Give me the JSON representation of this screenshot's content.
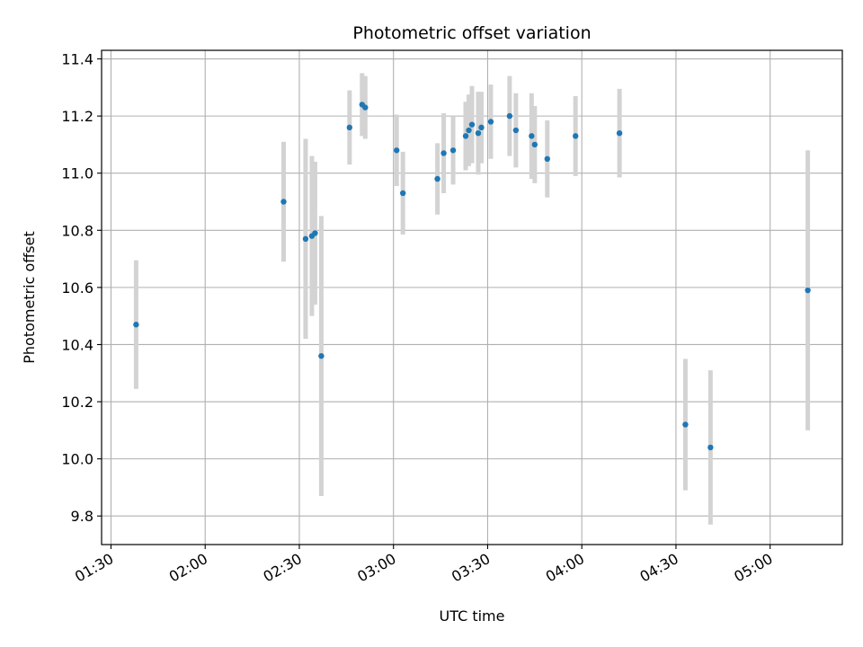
{
  "chart_data": {
    "type": "scatter",
    "title": "Photometric offset variation",
    "xlabel": "UTC time",
    "ylabel": "Photometric offset",
    "x_axis_kind": "time",
    "xlim": [
      "01:27",
      "05:23"
    ],
    "ylim": [
      9.7,
      11.43
    ],
    "grid": true,
    "x_ticks": [
      "01:30",
      "02:00",
      "02:30",
      "03:00",
      "03:30",
      "04:00",
      "04:30",
      "05:00"
    ],
    "y_ticks": [
      "9.8",
      "10.0",
      "10.2",
      "10.4",
      "10.6",
      "10.8",
      "11.0",
      "11.2",
      "11.4"
    ],
    "point_color": "#1f77b4",
    "errorbar_color": "#d3d3d3",
    "points": [
      {
        "x": "01:38",
        "y": 10.47,
        "err": 0.225
      },
      {
        "x": "02:25",
        "y": 10.9,
        "err": 0.21
      },
      {
        "x": "02:32",
        "y": 10.77,
        "err": 0.35
      },
      {
        "x": "02:34",
        "y": 10.78,
        "err": 0.28
      },
      {
        "x": "02:35",
        "y": 10.79,
        "err": 0.25
      },
      {
        "x": "02:37",
        "y": 10.36,
        "err": 0.49
      },
      {
        "x": "02:46",
        "y": 11.16,
        "err": 0.13
      },
      {
        "x": "02:50",
        "y": 11.24,
        "err": 0.11
      },
      {
        "x": "02:51",
        "y": 11.23,
        "err": 0.11
      },
      {
        "x": "03:01",
        "y": 11.08,
        "err": 0.125
      },
      {
        "x": "03:03",
        "y": 10.93,
        "err": 0.145
      },
      {
        "x": "03:14",
        "y": 10.98,
        "err": 0.125
      },
      {
        "x": "03:16",
        "y": 11.07,
        "err": 0.14
      },
      {
        "x": "03:19",
        "y": 11.08,
        "err": 0.12
      },
      {
        "x": "03:23",
        "y": 11.13,
        "err": 0.12
      },
      {
        "x": "03:24",
        "y": 11.15,
        "err": 0.125
      },
      {
        "x": "03:25",
        "y": 11.17,
        "err": 0.135
      },
      {
        "x": "03:27",
        "y": 11.14,
        "err": 0.145
      },
      {
        "x": "03:28",
        "y": 11.16,
        "err": 0.125
      },
      {
        "x": "03:31",
        "y": 11.18,
        "err": 0.13
      },
      {
        "x": "03:37",
        "y": 11.2,
        "err": 0.14
      },
      {
        "x": "03:39",
        "y": 11.15,
        "err": 0.13
      },
      {
        "x": "03:44",
        "y": 11.13,
        "err": 0.15
      },
      {
        "x": "03:45",
        "y": 11.1,
        "err": 0.135
      },
      {
        "x": "03:49",
        "y": 11.05,
        "err": 0.135
      },
      {
        "x": "03:58",
        "y": 11.13,
        "err": 0.14
      },
      {
        "x": "04:12",
        "y": 11.14,
        "err": 0.155
      },
      {
        "x": "04:33",
        "y": 10.12,
        "err": 0.23
      },
      {
        "x": "04:41",
        "y": 10.04,
        "err": 0.27
      },
      {
        "x": "05:12",
        "y": 10.59,
        "err": 0.49
      }
    ]
  }
}
